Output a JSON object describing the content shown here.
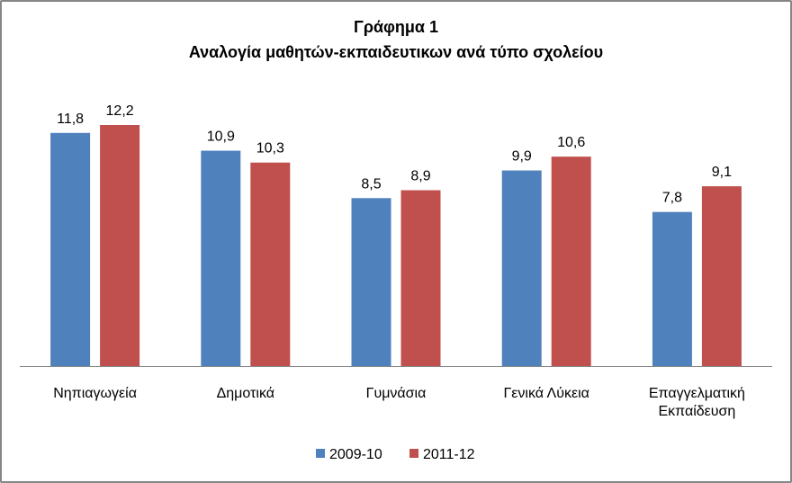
{
  "chart_data": {
    "type": "bar",
    "title": "Γράφημα 1",
    "subtitle": "Αναλογία μαθητών-εκπαιδευτικων ανά τύπο σχολείου",
    "categories": [
      [
        "Νηπιαγωγεία"
      ],
      [
        "Δημοτικά"
      ],
      [
        "Γυμνάσια"
      ],
      [
        "Γενικά Λύκεια"
      ],
      [
        "Επαγγελματική",
        "Εκπαίδευση"
      ]
    ],
    "series": [
      {
        "name": "2009-10",
        "color": "#4f81bd",
        "values": [
          11.8,
          10.9,
          8.5,
          9.9,
          7.8
        ],
        "labels": [
          "11,8",
          "10,9",
          "8,5",
          "9,9",
          "7,8"
        ]
      },
      {
        "name": "2011-12",
        "color": "#c0504d",
        "values": [
          12.2,
          10.3,
          8.9,
          10.6,
          9.1
        ],
        "labels": [
          "12,2",
          "10,3",
          "8,9",
          "10,6",
          "9,1"
        ]
      }
    ],
    "ylim": [
      0,
      12.2
    ],
    "grid": false,
    "legend": "bottom"
  }
}
